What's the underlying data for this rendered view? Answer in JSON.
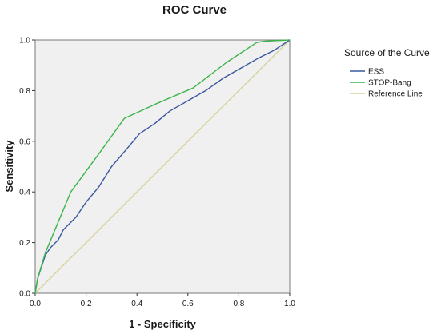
{
  "chart_data": {
    "type": "line",
    "title": "ROC Curve",
    "xlabel": "1 - Specificity",
    "ylabel": "Sensitivity",
    "xlim": [
      0,
      1
    ],
    "ylim": [
      0,
      1
    ],
    "xticks": [
      "0.0",
      "0.2",
      "0.4",
      "0.6",
      "0.8",
      "1.0"
    ],
    "yticks": [
      "0.0",
      "0.2",
      "0.4",
      "0.6",
      "0.8",
      "1.0"
    ],
    "grid": false,
    "plot_background": "#f0f0f0",
    "legend_title": "Source of the Curve",
    "legend_position": "right",
    "series": [
      {
        "name": "ESS",
        "color": "#3a58a0",
        "x": [
          0,
          0.01,
          0.04,
          0.06,
          0.09,
          0.11,
          0.13,
          0.16,
          0.2,
          0.25,
          0.3,
          0.36,
          0.41,
          0.47,
          0.53,
          0.6,
          0.67,
          0.74,
          0.81,
          0.88,
          0.94,
          1.0
        ],
        "y": [
          0,
          0.06,
          0.15,
          0.18,
          0.21,
          0.25,
          0.27,
          0.3,
          0.36,
          0.42,
          0.5,
          0.57,
          0.63,
          0.67,
          0.72,
          0.76,
          0.8,
          0.85,
          0.89,
          0.93,
          0.96,
          1.0
        ]
      },
      {
        "name": "STOP-Bang",
        "color": "#3cb44b",
        "x": [
          0,
          0.01,
          0.04,
          0.09,
          0.14,
          0.25,
          0.35,
          0.48,
          0.62,
          0.75,
          0.87,
          0.9,
          1.0
        ],
        "y": [
          0,
          0.06,
          0.16,
          0.28,
          0.4,
          0.55,
          0.69,
          0.75,
          0.81,
          0.91,
          0.99,
          0.995,
          1.0
        ]
      },
      {
        "name": "Reference Line",
        "color": "#d6d29a",
        "x": [
          0,
          1
        ],
        "y": [
          0,
          1
        ]
      }
    ]
  }
}
